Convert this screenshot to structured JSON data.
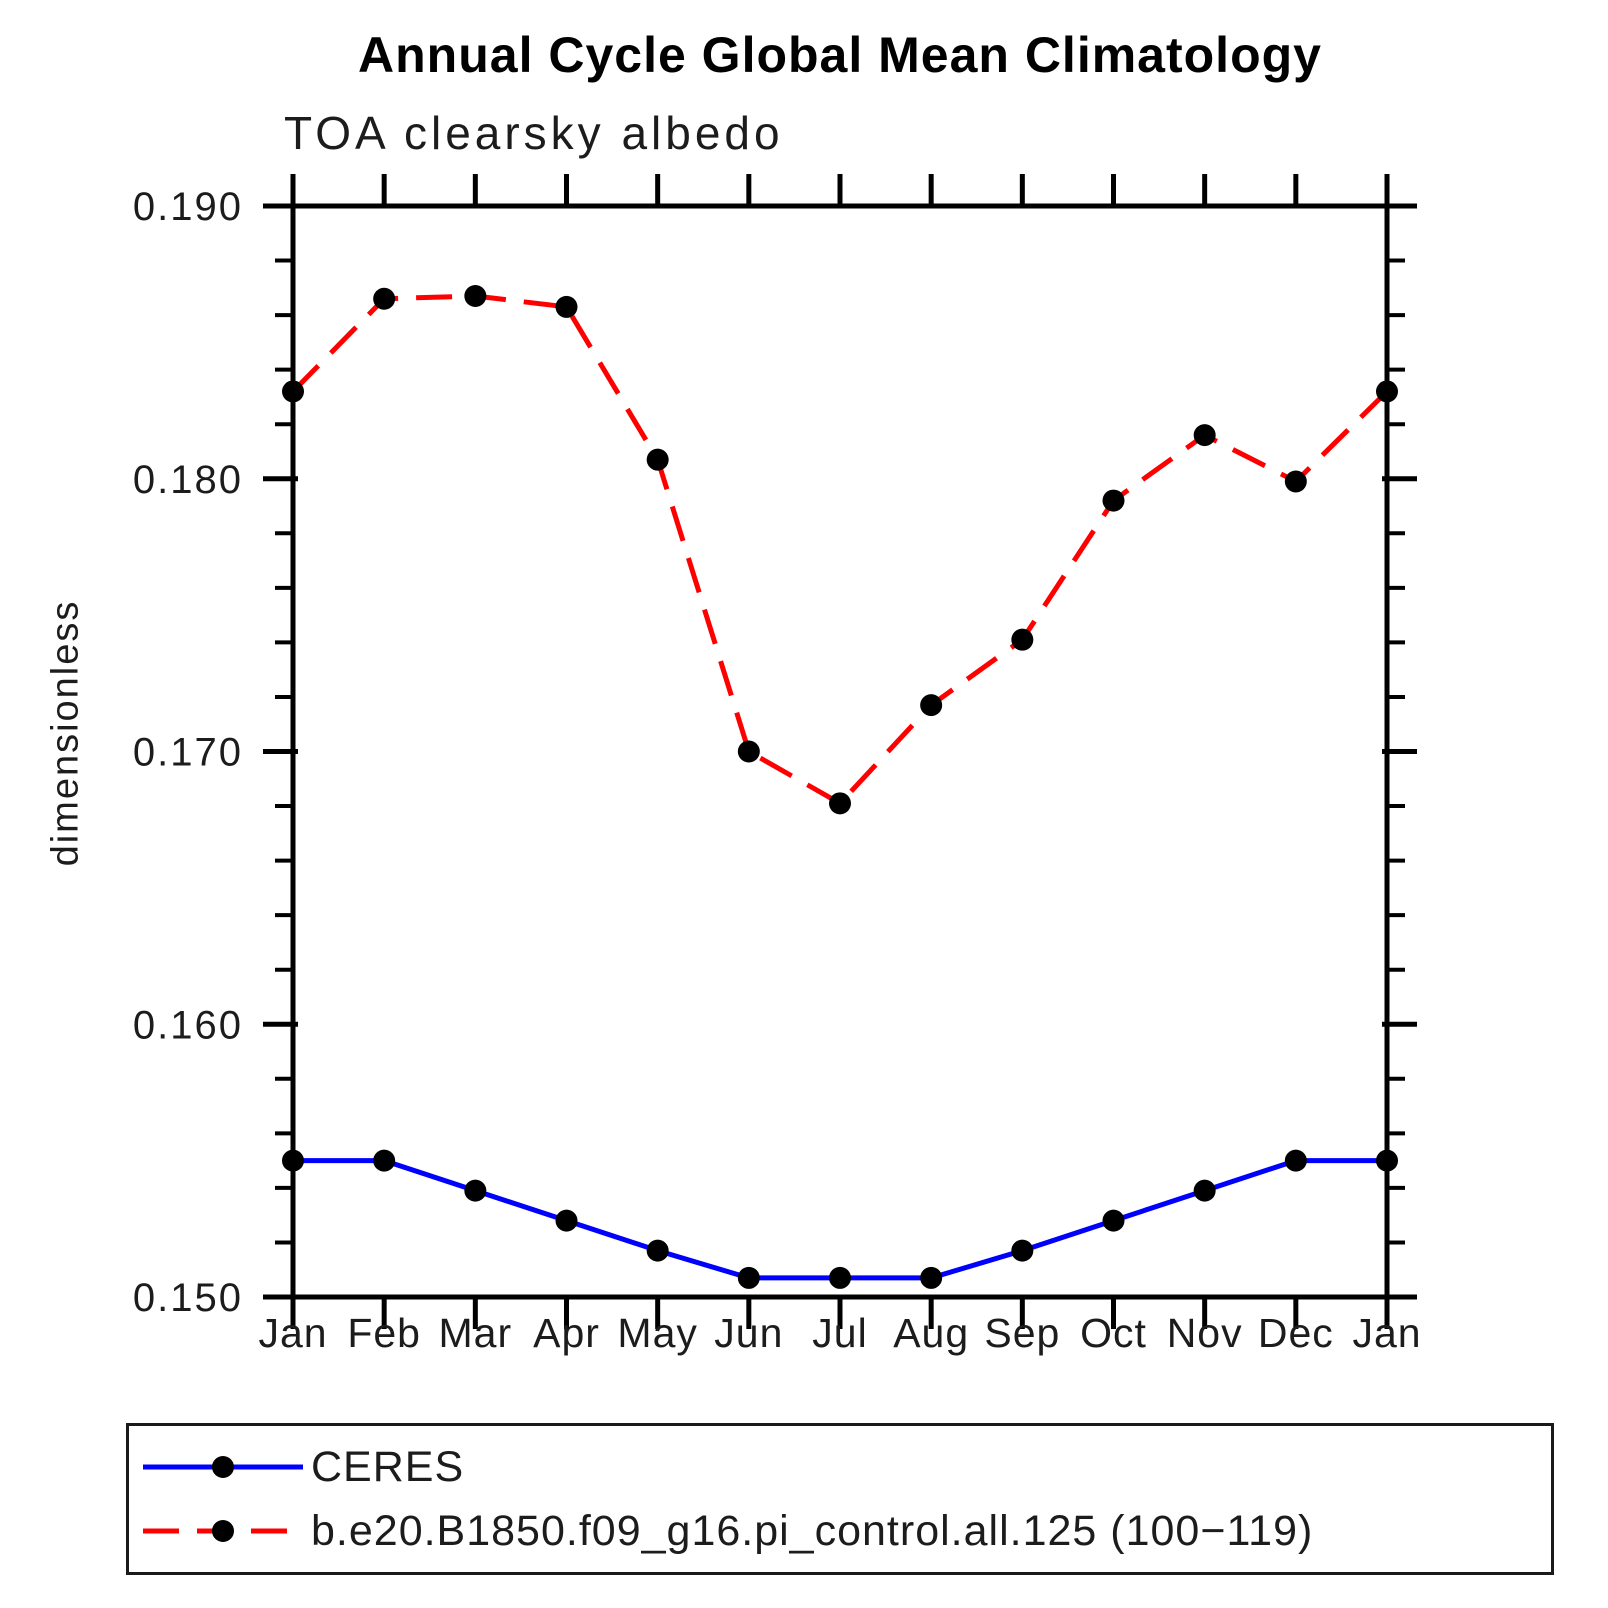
{
  "chart_data": {
    "type": "line",
    "title": "Annual Cycle Global Mean Climatology",
    "subtitle": "TOA clearsky albedo",
    "ylabel": "dimensionless",
    "xlabel": "",
    "ylim": [
      0.15,
      0.19
    ],
    "y_major_step": 0.01,
    "y_minor_step": 0.002,
    "grid": false,
    "legend_position": "bottom-left",
    "categories": [
      "Jan",
      "Feb",
      "Mar",
      "Apr",
      "May",
      "Jun",
      "Jul",
      "Aug",
      "Sep",
      "Oct",
      "Nov",
      "Dec",
      "Jan"
    ],
    "series": [
      {
        "name": "CERES",
        "color": "#0000ff",
        "line_style": "solid",
        "marker": "circle",
        "marker_color": "#000000",
        "values": [
          0.155,
          0.155,
          0.1539,
          0.1528,
          0.1517,
          0.1507,
          0.1507,
          0.1507,
          0.1517,
          0.1528,
          0.1539,
          0.155,
          0.155
        ]
      },
      {
        "name": "b.e20.B1850.f09_g16.pi_control.all.125 (100−119)",
        "color": "#ff0000",
        "line_style": "dashed",
        "marker": "circle",
        "marker_color": "#000000",
        "values": [
          0.1832,
          0.1866,
          0.1867,
          0.1863,
          0.1807,
          0.17,
          0.1681,
          0.1717,
          0.1741,
          0.1792,
          0.1816,
          0.1799,
          0.1832
        ]
      }
    ],
    "axis_color": "#000000"
  }
}
